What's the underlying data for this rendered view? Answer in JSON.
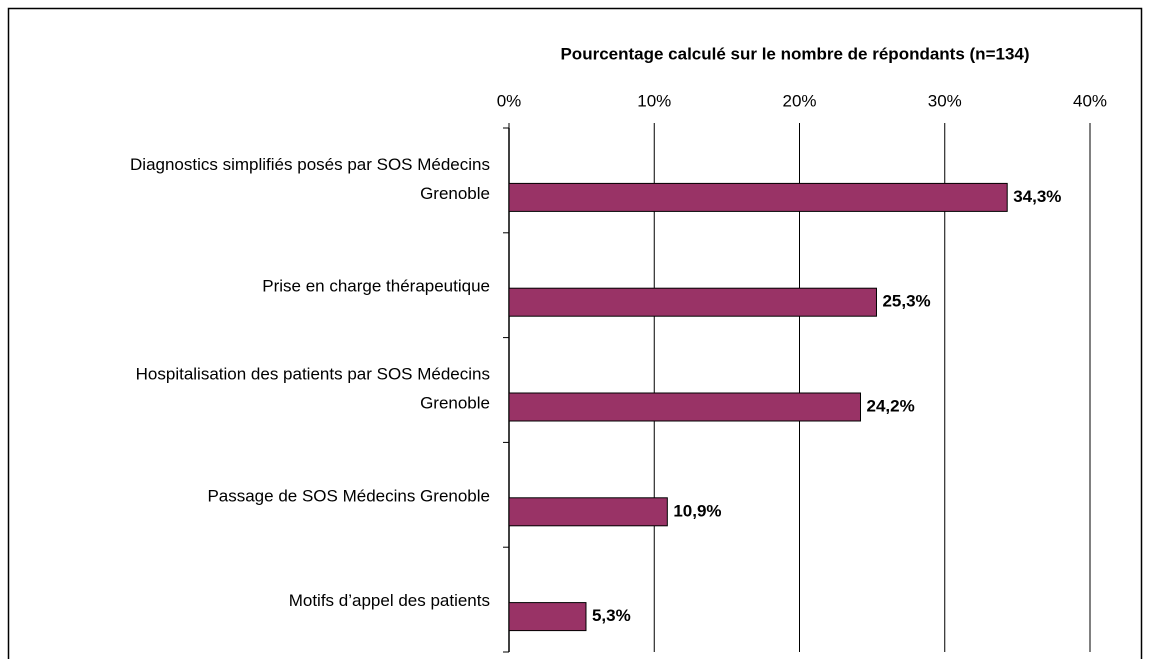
{
  "chart_data": {
    "type": "bar",
    "orientation": "horizontal",
    "title": "Pourcentage calculé sur le nombre de répondants (n=134)",
    "categories": [
      "Diagnostics simplifiés posés par SOS Médecins\nGrenoble",
      "Prise en charge thérapeutique",
      "Hospitalisation des patients par SOS Médecins\nGrenoble",
      "Passage de SOS Médecins Grenoble",
      "Motifs d’appel des patients"
    ],
    "values": [
      34.3,
      25.3,
      24.2,
      10.9,
      5.3
    ],
    "value_labels": [
      "34,3%",
      "25,3%",
      "24,2%",
      "10,9%",
      "5,3%"
    ],
    "color": "#993366",
    "xlim": [
      0,
      40
    ],
    "xticks": [
      {
        "value": 0,
        "label": "0%"
      },
      {
        "value": 10,
        "label": "10%"
      },
      {
        "value": 20,
        "label": "20%"
      },
      {
        "value": 30,
        "label": "30%"
      },
      {
        "value": 40,
        "label": "40%"
      }
    ],
    "grid": true
  }
}
